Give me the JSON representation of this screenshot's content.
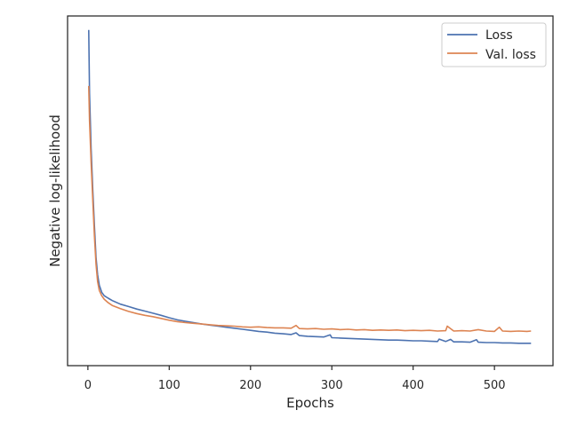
{
  "chart_data": {
    "type": "line",
    "title": "",
    "xlabel": "Epochs",
    "ylabel": "Negative log-likelihood",
    "xlim": [
      -25,
      572
    ],
    "ylim": [
      0,
      100
    ],
    "x_ticks": [
      0,
      100,
      200,
      300,
      400,
      500
    ],
    "y_ticks_shown": false,
    "grid": false,
    "legend_position": "top-right",
    "series": [
      {
        "name": "Loss",
        "color": "#4c72b0",
        "points": [
          [
            1,
            96
          ],
          [
            2,
            78
          ],
          [
            4,
            62
          ],
          [
            6,
            50
          ],
          [
            8,
            40
          ],
          [
            10,
            31
          ],
          [
            12,
            26
          ],
          [
            14,
            23
          ],
          [
            17,
            21
          ],
          [
            20,
            20
          ],
          [
            25,
            19.3
          ],
          [
            30,
            18.6
          ],
          [
            40,
            17.6
          ],
          [
            50,
            16.9
          ],
          [
            60,
            16.2
          ],
          [
            70,
            15.6
          ],
          [
            80,
            15
          ],
          [
            90,
            14.4
          ],
          [
            100,
            13.7
          ],
          [
            110,
            13.1
          ],
          [
            120,
            12.7
          ],
          [
            130,
            12.3
          ],
          [
            140,
            11.9
          ],
          [
            150,
            11.6
          ],
          [
            160,
            11.3
          ],
          [
            170,
            11
          ],
          [
            180,
            10.7
          ],
          [
            190,
            10.4
          ],
          [
            200,
            10.1
          ],
          [
            210,
            9.8
          ],
          [
            220,
            9.6
          ],
          [
            230,
            9.3
          ],
          [
            240,
            9.1
          ],
          [
            250,
            8.9
          ],
          [
            256,
            9.4
          ],
          [
            260,
            8.6
          ],
          [
            270,
            8.4
          ],
          [
            280,
            8.3
          ],
          [
            290,
            8.2
          ],
          [
            298,
            8.8
          ],
          [
            300,
            8
          ],
          [
            310,
            7.9
          ],
          [
            320,
            7.8
          ],
          [
            330,
            7.7
          ],
          [
            340,
            7.6
          ],
          [
            350,
            7.5
          ],
          [
            360,
            7.4
          ],
          [
            370,
            7.3
          ],
          [
            380,
            7.3
          ],
          [
            390,
            7.2
          ],
          [
            400,
            7.1
          ],
          [
            410,
            7.1
          ],
          [
            420,
            7
          ],
          [
            430,
            6.9
          ],
          [
            432,
            7.6
          ],
          [
            440,
            6.9
          ],
          [
            446,
            7.5
          ],
          [
            450,
            6.8
          ],
          [
            460,
            6.8
          ],
          [
            470,
            6.7
          ],
          [
            478,
            7.4
          ],
          [
            480,
            6.7
          ],
          [
            490,
            6.6
          ],
          [
            500,
            6.6
          ],
          [
            510,
            6.5
          ],
          [
            520,
            6.5
          ],
          [
            530,
            6.4
          ],
          [
            540,
            6.4
          ],
          [
            545,
            6.4
          ]
        ]
      },
      {
        "name": "Val. loss",
        "color": "#dd8452",
        "points": [
          [
            1,
            80
          ],
          [
            2,
            70
          ],
          [
            4,
            58
          ],
          [
            6,
            47
          ],
          [
            8,
            37
          ],
          [
            10,
            29
          ],
          [
            12,
            24
          ],
          [
            14,
            21.5
          ],
          [
            17,
            20
          ],
          [
            20,
            19
          ],
          [
            25,
            18
          ],
          [
            30,
            17.2
          ],
          [
            40,
            16.3
          ],
          [
            50,
            15.5
          ],
          [
            60,
            14.9
          ],
          [
            70,
            14.4
          ],
          [
            80,
            14
          ],
          [
            90,
            13.5
          ],
          [
            100,
            13
          ],
          [
            110,
            12.6
          ],
          [
            120,
            12.3
          ],
          [
            130,
            12.1
          ],
          [
            140,
            11.9
          ],
          [
            150,
            11.7
          ],
          [
            160,
            11.5
          ],
          [
            170,
            11.4
          ],
          [
            180,
            11.3
          ],
          [
            190,
            11.1
          ],
          [
            200,
            11
          ],
          [
            210,
            11.1
          ],
          [
            220,
            10.9
          ],
          [
            230,
            10.8
          ],
          [
            240,
            10.8
          ],
          [
            250,
            10.7
          ],
          [
            256,
            11.5
          ],
          [
            260,
            10.6
          ],
          [
            270,
            10.5
          ],
          [
            280,
            10.6
          ],
          [
            290,
            10.4
          ],
          [
            300,
            10.5
          ],
          [
            310,
            10.3
          ],
          [
            320,
            10.4
          ],
          [
            330,
            10.2
          ],
          [
            340,
            10.3
          ],
          [
            350,
            10.1
          ],
          [
            360,
            10.2
          ],
          [
            370,
            10.1
          ],
          [
            380,
            10.2
          ],
          [
            390,
            10
          ],
          [
            400,
            10.1
          ],
          [
            410,
            10
          ],
          [
            420,
            10.1
          ],
          [
            430,
            9.9
          ],
          [
            440,
            10
          ],
          [
            442,
            11.3
          ],
          [
            450,
            9.9
          ],
          [
            460,
            10
          ],
          [
            470,
            9.9
          ],
          [
            480,
            10.3
          ],
          [
            490,
            9.9
          ],
          [
            500,
            9.8
          ],
          [
            506,
            11
          ],
          [
            510,
            9.9
          ],
          [
            520,
            9.8
          ],
          [
            530,
            9.9
          ],
          [
            540,
            9.8
          ],
          [
            545,
            9.9
          ]
        ]
      }
    ]
  }
}
